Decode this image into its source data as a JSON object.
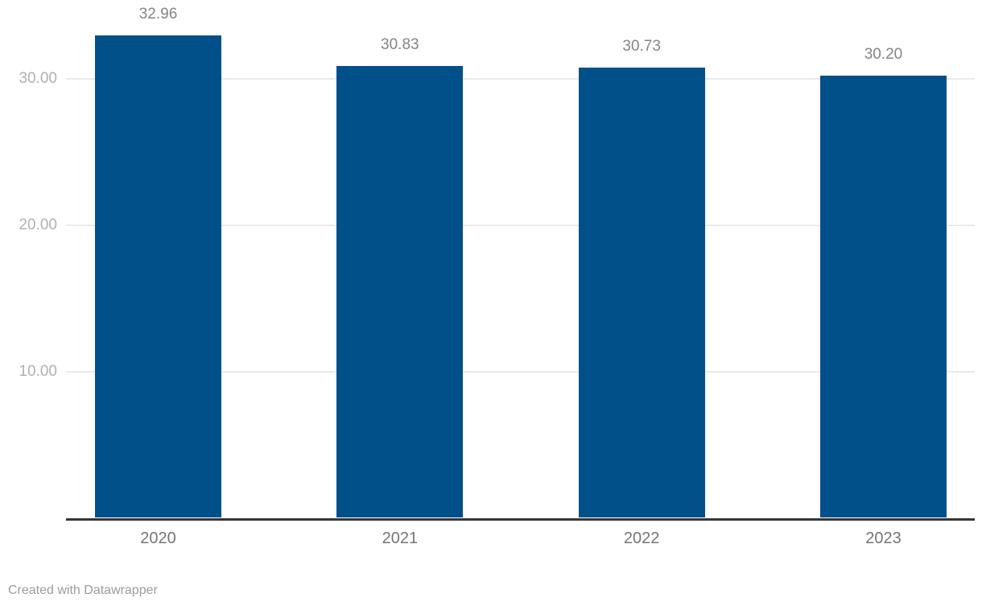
{
  "chart_data": {
    "type": "bar",
    "categories": [
      "2020",
      "2021",
      "2022",
      "2023"
    ],
    "values": [
      32.96,
      30.83,
      30.73,
      30.2
    ],
    "value_labels": [
      "32.96",
      "30.83",
      "30.73",
      "30.20"
    ],
    "yticks": [
      {
        "value": 10,
        "label": "10.00"
      },
      {
        "value": 20,
        "label": "20.00"
      },
      {
        "value": 30,
        "label": "30.00"
      }
    ],
    "ylim": [
      0,
      35.3
    ],
    "grid": true,
    "legend": "none",
    "bar_color": "#02508a",
    "baseline_color": "#363636",
    "gridline_color": "#eaeaea"
  },
  "footer": {
    "credit": "Created with Datawrapper"
  }
}
